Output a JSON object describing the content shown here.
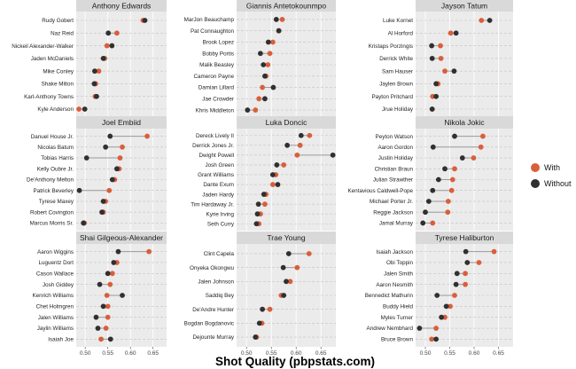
{
  "chart_data": {
    "type": "dot-plot",
    "xlabel": "Shot Quality (pbpstats.com)",
    "xlim": [
      0.48,
      0.68
    ],
    "x_ticks": [
      0.5,
      0.55,
      0.6,
      0.65
    ],
    "x_tick_labels": [
      "0.50",
      "0.55",
      "0.60",
      "0.65"
    ],
    "legend": [
      {
        "key": "with",
        "label": "With",
        "color": "#d95f3b"
      },
      {
        "key": "without",
        "label": "Without",
        "color": "#303030"
      }
    ],
    "panels": [
      {
        "title": "Anthony Edwards",
        "players": [
          {
            "name": "Rudy Gobert",
            "with": 0.628,
            "without": 0.632
          },
          {
            "name": "Naz Reid",
            "with": 0.57,
            "without": 0.551
          },
          {
            "name": "Nickeil Alexander-Walker",
            "with": 0.548,
            "without": 0.559
          },
          {
            "name": "Jaden McDaniels",
            "with": 0.543,
            "without": 0.54
          },
          {
            "name": "Mike Conley",
            "with": 0.53,
            "without": 0.521
          },
          {
            "name": "Shake Milton",
            "with": 0.523,
            "without": 0.52
          },
          {
            "name": "Karl-Anthony Towns",
            "with": 0.522,
            "without": 0.525
          },
          {
            "name": "Kyle Anderson",
            "with": 0.486,
            "without": 0.499
          }
        ]
      },
      {
        "title": "Giannis Antetokounmpo",
        "players": [
          {
            "name": "MarJon Beauchamp",
            "with": 0.572,
            "without": 0.56
          },
          {
            "name": "Pat Connaughton",
            "with": 0.565,
            "without": 0.565
          },
          {
            "name": "Brook Lopez",
            "with": 0.553,
            "without": 0.544
          },
          {
            "name": "Bobby Portis",
            "with": 0.547,
            "without": 0.528
          },
          {
            "name": "Malik Beasley",
            "with": 0.543,
            "without": 0.534
          },
          {
            "name": "Cameron Payne",
            "with": 0.539,
            "without": 0.537
          },
          {
            "name": "Damian Lillard",
            "with": 0.532,
            "without": 0.554
          },
          {
            "name": "Jae Crowder",
            "with": 0.525,
            "without": 0.537
          },
          {
            "name": "Khris Middleton",
            "with": 0.518,
            "without": 0.502
          }
        ]
      },
      {
        "title": "Jayson Tatum",
        "players": [
          {
            "name": "Luke Kornet",
            "with": 0.615,
            "without": 0.632
          },
          {
            "name": "Al Horford",
            "with": 0.552,
            "without": 0.563
          },
          {
            "name": "Kristaps Porzingis",
            "with": 0.531,
            "without": 0.513
          },
          {
            "name": "Derrick White",
            "with": 0.532,
            "without": 0.514
          },
          {
            "name": "Sam Hauser",
            "with": 0.54,
            "without": 0.559
          },
          {
            "name": "Jaylen Brown",
            "with": 0.526,
            "without": 0.522
          },
          {
            "name": "Payton Pritchard",
            "with": 0.515,
            "without": 0.522
          },
          {
            "name": "Jrue Holiday",
            "with": 0.514,
            "without": 0.514
          }
        ]
      },
      {
        "title": "Joel Embiid",
        "players": [
          {
            "name": "Danuel House Jr.",
            "with": 0.637,
            "without": 0.555
          },
          {
            "name": "Nicolas Batum",
            "with": 0.582,
            "without": 0.545
          },
          {
            "name": "Tobias Harris",
            "with": 0.577,
            "without": 0.503
          },
          {
            "name": "Kelly Oubre Jr.",
            "with": 0.575,
            "without": 0.57
          },
          {
            "name": "De'Anthony Melton",
            "with": 0.565,
            "without": 0.56
          },
          {
            "name": "Patrick Beverley",
            "with": 0.553,
            "without": 0.487
          },
          {
            "name": "Tyrese Maxey",
            "with": 0.545,
            "without": 0.54
          },
          {
            "name": "Robert Covington",
            "with": 0.54,
            "without": 0.537
          },
          {
            "name": "Marcus Morris Sr.",
            "with": 0.498,
            "without": 0.496
          }
        ]
      },
      {
        "title": "Luka Doncic",
        "players": [
          {
            "name": "Dereck Lively II",
            "with": 0.627,
            "without": 0.61
          },
          {
            "name": "Derrick Jones Jr.",
            "with": 0.608,
            "without": 0.582
          },
          {
            "name": "Dwight Powell",
            "with": 0.602,
            "without": 0.674
          },
          {
            "name": "Josh Green",
            "with": 0.575,
            "without": 0.561
          },
          {
            "name": "Grant Williams",
            "with": 0.559,
            "without": 0.553
          },
          {
            "name": "Dante Exum",
            "with": 0.553,
            "without": 0.563
          },
          {
            "name": "Jaden Hardy",
            "with": 0.539,
            "without": 0.535
          },
          {
            "name": "Tim Hardaway Jr.",
            "with": 0.537,
            "without": 0.524
          },
          {
            "name": "Kyrie Irving",
            "with": 0.528,
            "without": 0.522
          },
          {
            "name": "Seth Curry",
            "with": 0.525,
            "without": 0.52
          }
        ]
      },
      {
        "title": "Nikola Jokic",
        "players": [
          {
            "name": "Peyton Watson",
            "with": 0.618,
            "without": 0.56
          },
          {
            "name": "Aaron Gordon",
            "with": 0.614,
            "without": 0.516
          },
          {
            "name": "Justin Holiday",
            "with": 0.599,
            "without": 0.576
          },
          {
            "name": "Christian Braun",
            "with": 0.56,
            "without": 0.54
          },
          {
            "name": "Julian Strawther",
            "with": 0.556,
            "without": 0.527
          },
          {
            "name": "Kentavious Caldwell-Pope",
            "with": 0.554,
            "without": 0.515
          },
          {
            "name": "Michael Porter Jr.",
            "with": 0.547,
            "without": 0.507
          },
          {
            "name": "Reggie Jackson",
            "with": 0.546,
            "without": 0.5
          },
          {
            "name": "Jamal Murray",
            "with": 0.515,
            "without": 0.495
          }
        ]
      },
      {
        "title": "Shai Gilgeous-Alexander",
        "players": [
          {
            "name": "Aaron Wiggins",
            "with": 0.641,
            "without": 0.573
          },
          {
            "name": "Luguentz Dort",
            "with": 0.57,
            "without": 0.563
          },
          {
            "name": "Cason Wallace",
            "with": 0.56,
            "without": 0.55
          },
          {
            "name": "Josh Giddey",
            "with": 0.555,
            "without": 0.532
          },
          {
            "name": "Kenrich Williams",
            "with": 0.548,
            "without": 0.582
          },
          {
            "name": "Chet Holmgren",
            "with": 0.55,
            "without": 0.54
          },
          {
            "name": "Jalen Williams",
            "with": 0.55,
            "without": 0.524
          },
          {
            "name": "Jaylin Williams",
            "with": 0.546,
            "without": 0.528
          },
          {
            "name": "Isaiah Joe",
            "with": 0.535,
            "without": 0.556
          }
        ]
      },
      {
        "title": "Trae Young",
        "players": [
          {
            "name": "Clint Capela",
            "with": 0.626,
            "without": 0.585
          },
          {
            "name": "Onyeka Okongwu",
            "with": 0.602,
            "without": 0.574
          },
          {
            "name": "Jalen Johnson",
            "with": 0.588,
            "without": 0.58
          },
          {
            "name": "Saddiq Bey",
            "with": 0.57,
            "without": 0.575
          },
          {
            "name": "De'Andre Hunter",
            "with": 0.547,
            "without": 0.532
          },
          {
            "name": "Bogdan Bogdanovic",
            "with": 0.531,
            "without": 0.526
          },
          {
            "name": "Dejounte Murray",
            "with": 0.52,
            "without": 0.518
          }
        ]
      },
      {
        "title": "Tyrese Haliburton",
        "players": [
          {
            "name": "Isaiah Jackson",
            "with": 0.641,
            "without": 0.583
          },
          {
            "name": "Obi Toppin",
            "with": 0.61,
            "without": 0.586
          },
          {
            "name": "Jalen Smith",
            "with": 0.582,
            "without": 0.565
          },
          {
            "name": "Aaron Nesmith",
            "with": 0.582,
            "without": 0.563
          },
          {
            "name": "Bennedict Mathurin",
            "with": 0.56,
            "without": 0.524
          },
          {
            "name": "Buddy Hield",
            "with": 0.551,
            "without": 0.543
          },
          {
            "name": "Myles Turner",
            "with": 0.54,
            "without": 0.533
          },
          {
            "name": "Andrew Nembhard",
            "with": 0.522,
            "without": 0.488
          },
          {
            "name": "Bruce Brown",
            "with": 0.513,
            "without": 0.522
          }
        ]
      }
    ]
  }
}
